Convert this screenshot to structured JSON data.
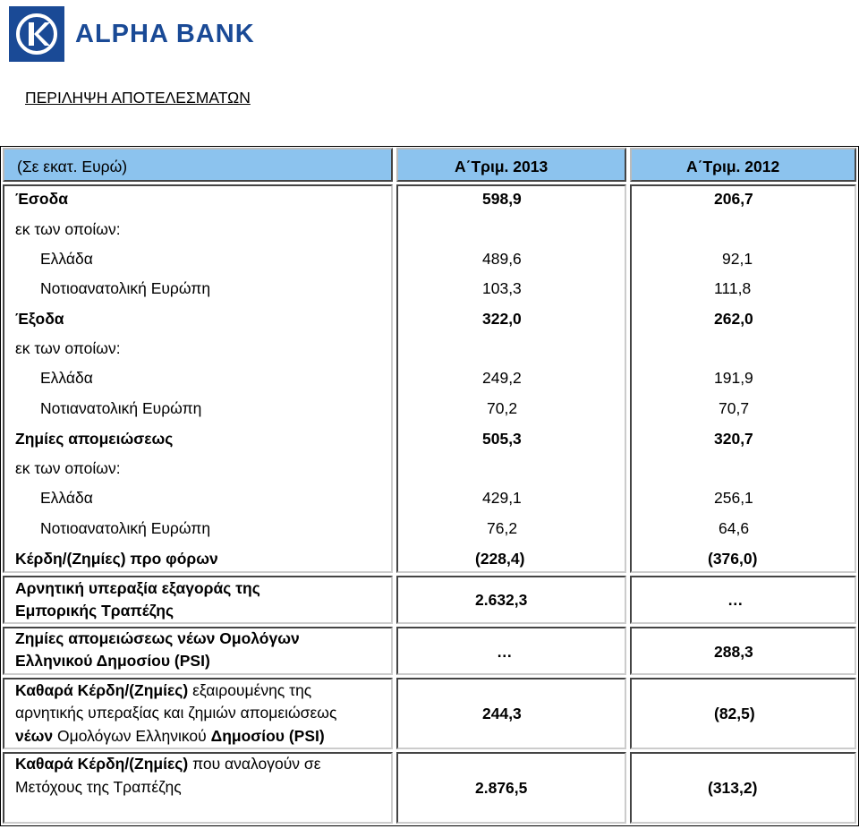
{
  "brand": {
    "name": "ALPHA BANK",
    "color": "#1a4a96"
  },
  "page_title": "ΠΕΡΙΛΗΨΗ ΑΠΟΤΕΛΕΣΜΑΤΩΝ",
  "header": {
    "unit": "(Σε εκατ. Ευρώ)",
    "col1": "Α΄Τριμ. 2013",
    "col2": "Α΄Τριμ. 2012",
    "color": "#8cc3ee"
  },
  "rows": {
    "r1": {
      "label": "Έσοδα",
      "v1": "598,9",
      "v2": "206,7"
    },
    "r2": {
      "label": "εκ των οποίων:"
    },
    "r3": {
      "label": "Ελλάδα",
      "v1": "489,6",
      "v2": "92,1"
    },
    "r4": {
      "label": "Νοτιοανατολική Ευρώπη",
      "v1": "103,3",
      "v2": "111,8"
    },
    "r5": {
      "label": "Έξοδα",
      "v1": "322,0",
      "v2": "262,0"
    },
    "r6": {
      "label": "εκ των οποίων:"
    },
    "r7": {
      "label": "Ελλάδα",
      "v1": "249,2",
      "v2": "191,9"
    },
    "r8": {
      "label": "Νοτιανατολική Ευρώπη",
      "v1": "70,2",
      "v2": "70,7"
    },
    "r9": {
      "label": "Ζημίες απομειώσεως",
      "v1": "505,3",
      "v2": "320,7"
    },
    "r10": {
      "label": "εκ των οποίων:"
    },
    "r11": {
      "label": "Ελλάδα",
      "v1": "429,1",
      "v2": "256,1"
    },
    "r12": {
      "label": "Νοτιοανατολική Ευρώπη",
      "v1": "76,2",
      "v2": "64,6"
    },
    "r13": {
      "label": "Κέρδη/(Ζημίες) προ φόρων",
      "v1": "(228,4)",
      "v2": "(376,0)"
    },
    "r14": {
      "label_l1": "Αρνητική υπεραξία εξαγοράς της",
      "label_l2": "Εμπορικής Τραπέζης",
      "v1": "2.632,3",
      "v2": "…"
    },
    "r15": {
      "label_l1": "Ζημίες απομειώσεως νέων Ομολόγων",
      "label_l2": "Ελληνικού Δημοσίου (PSI)",
      "v1": "…",
      "v2": "288,3"
    },
    "r16": {
      "l1_bold": "Καθαρά Κέρδη/(Ζημίες)",
      "l1_rest": " εξαιρουμένης της",
      "l2": "αρνητικής υπεραξίας και ζημιών απομειώσεως",
      "l3_bold": "νέων",
      "l3_mid": " Ομολόγων Ελληνικού ",
      "l3_bold2": "Δημοσίου (PSI)",
      "v1": "244,3",
      "v2": "(82,5)"
    },
    "r17": {
      "l1_bold": "Καθαρά Κέρδη/(Ζημίες)",
      "l1_rest": " που αναλογούν σε",
      "l2": "Μετόχους της Τραπέζης",
      "v1": "2.876,5",
      "v2": "(313,2)"
    }
  }
}
